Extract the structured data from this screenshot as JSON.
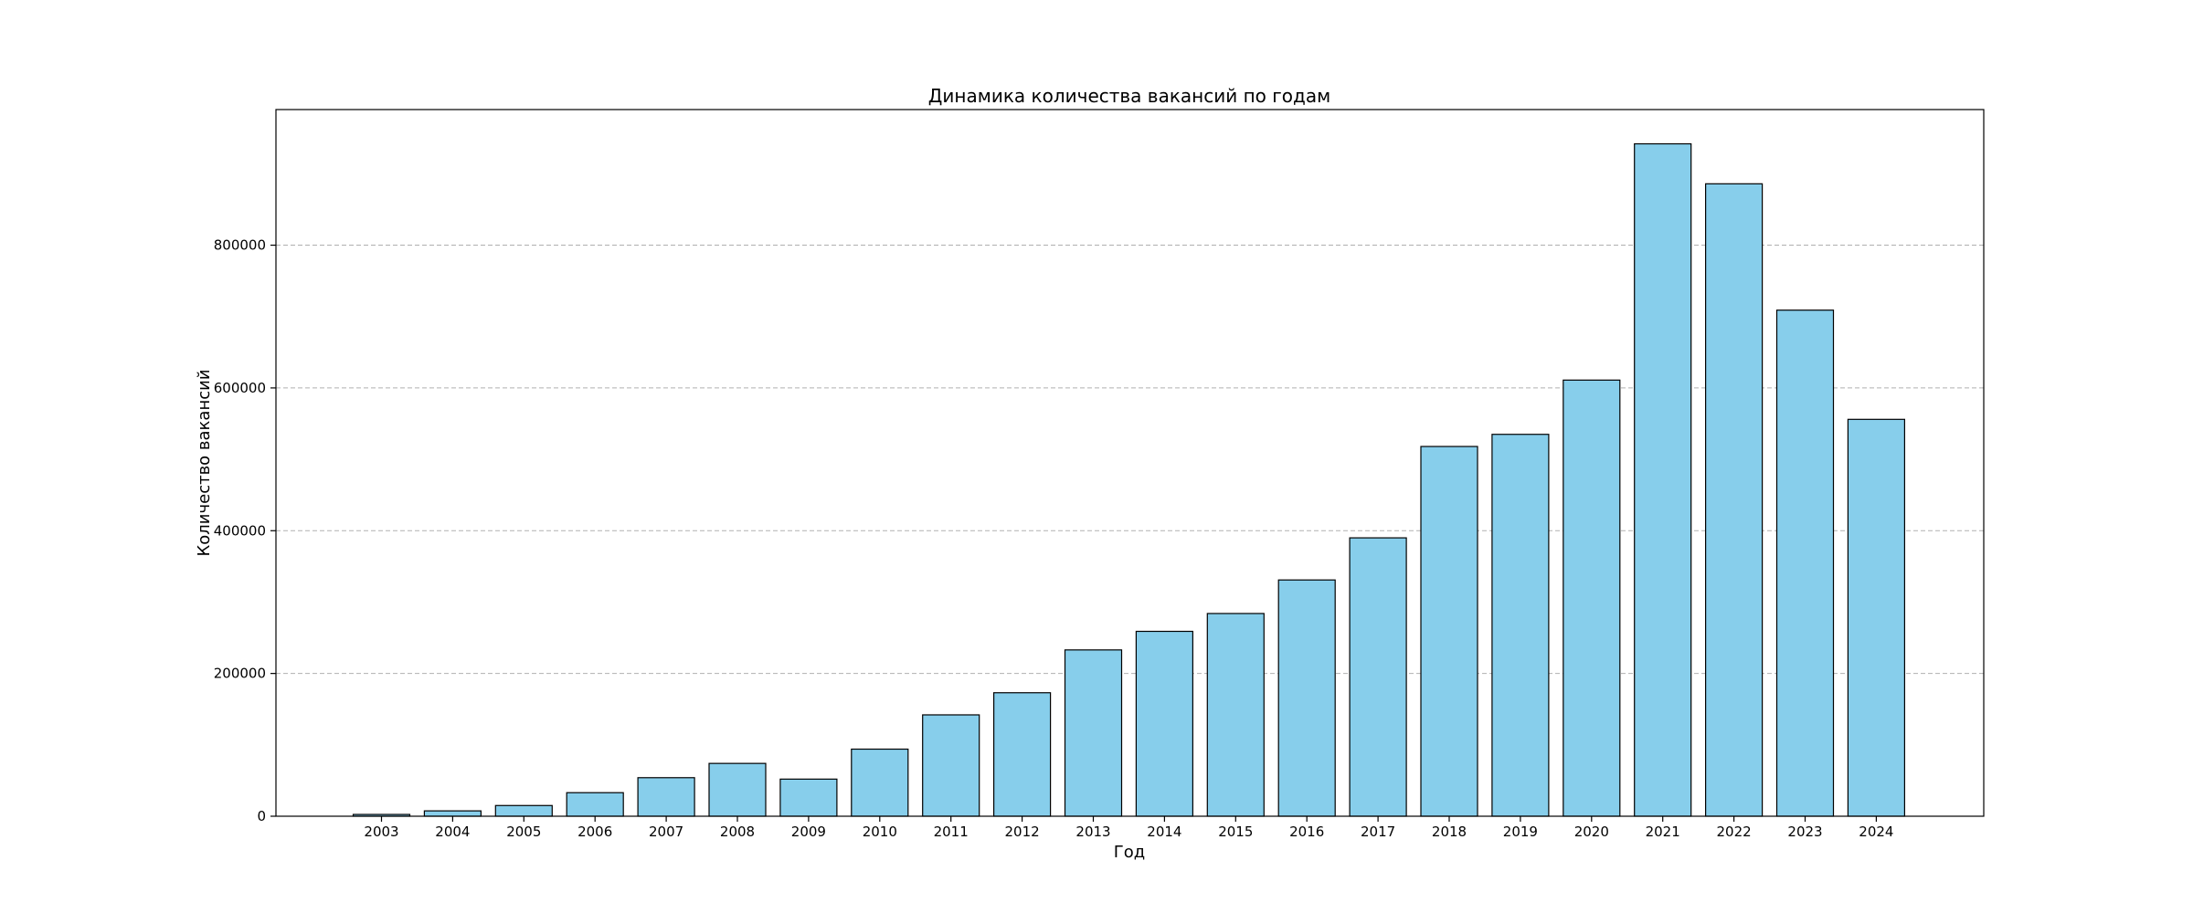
{
  "chart_data": {
    "type": "bar",
    "title": "Динамика количества вакансий по годам",
    "xlabel": "Год",
    "ylabel": "Количество вакансий",
    "categories": [
      "2003",
      "2004",
      "2005",
      "2006",
      "2007",
      "2008",
      "2009",
      "2010",
      "2011",
      "2012",
      "2013",
      "2014",
      "2015",
      "2016",
      "2017",
      "2018",
      "2019",
      "2020",
      "2021",
      "2022",
      "2023",
      "2024"
    ],
    "values": [
      2500,
      7500,
      15000,
      33000,
      54000,
      74000,
      52000,
      94000,
      142000,
      173000,
      233000,
      259000,
      284000,
      331000,
      390000,
      518000,
      535000,
      611000,
      942000,
      886000,
      709000,
      556000
    ],
    "ylim": [
      0,
      990000
    ],
    "yticks": [
      0,
      200000,
      400000,
      600000,
      800000
    ],
    "ytick_labels": [
      "0",
      "200000",
      "400000",
      "600000",
      "800000"
    ],
    "grid": "y-dashed",
    "bar_color": "#87CEEB",
    "edge_color": "#000000"
  }
}
